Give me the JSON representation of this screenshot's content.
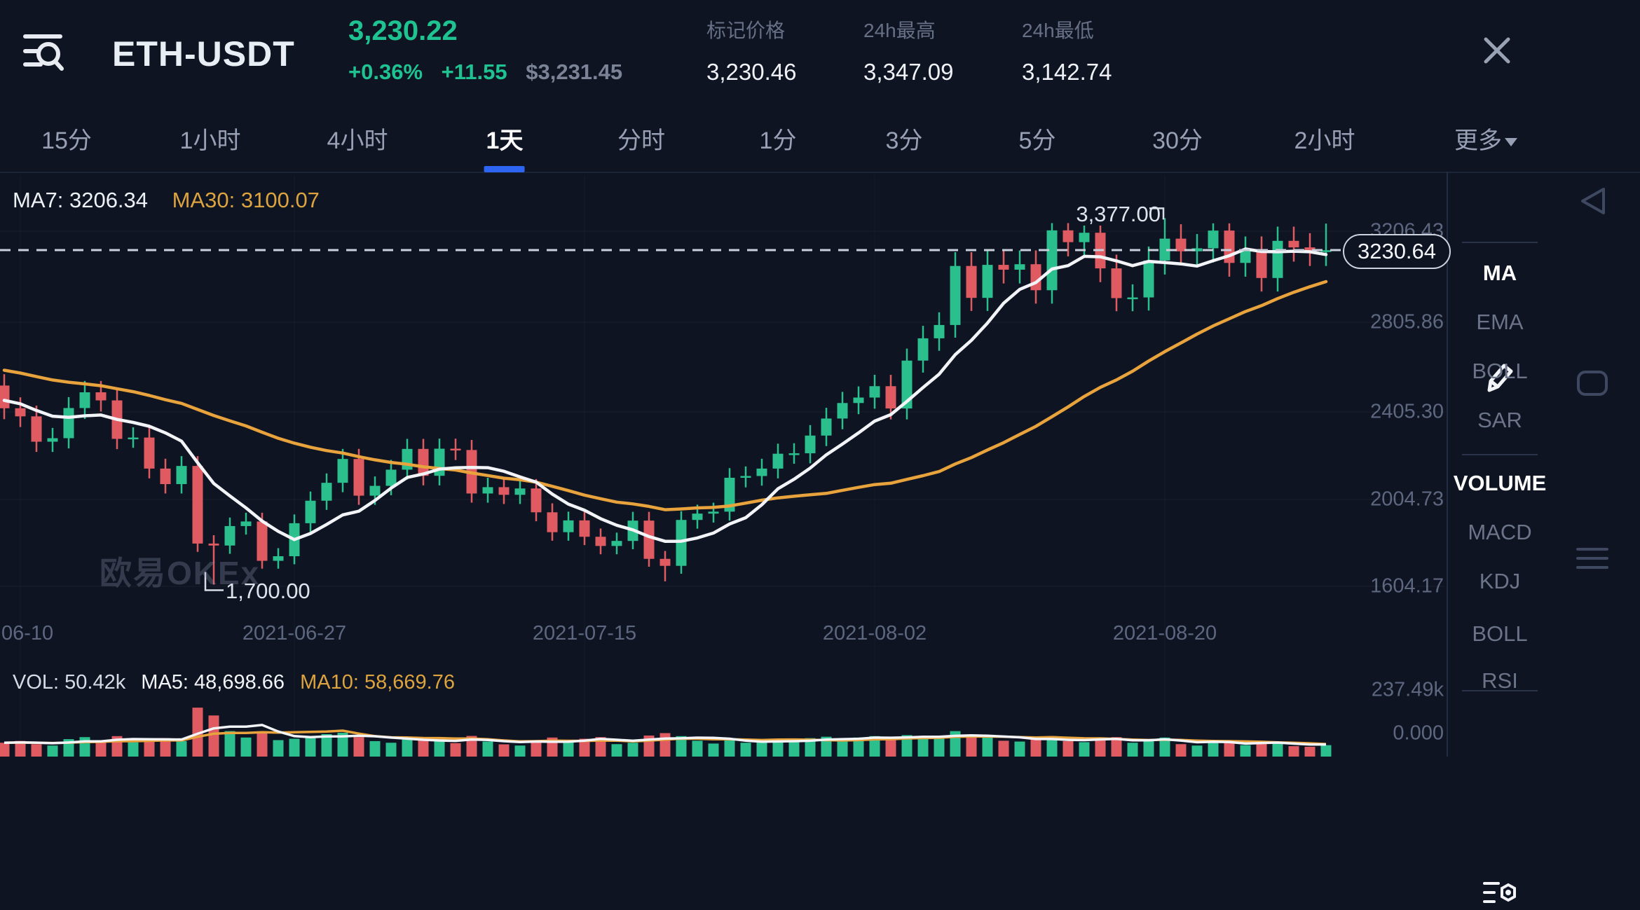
{
  "header": {
    "symbol": "ETH-USDT",
    "last_price": "3,230.22",
    "change_pct": "+0.36%",
    "change_abs": "+11.55",
    "fiat_price": "$3,231.45",
    "stats": [
      {
        "label": "标记价格",
        "value": "3,230.46"
      },
      {
        "label": "24h最高",
        "value": "3,347.09"
      },
      {
        "label": "24h最低",
        "value": "3,142.74"
      }
    ]
  },
  "tabs": {
    "items": [
      "15分",
      "1小时",
      "4小时",
      "1天",
      "分时",
      "1分",
      "3分",
      "5分",
      "30分",
      "2小时"
    ],
    "active": "1天",
    "more_label": "更多"
  },
  "legend": {
    "ma7": "MA7: 3206.34",
    "ma30": "MA30: 3100.07",
    "vol": "VOL: 50.42k",
    "vol_ma5": "MA5: 48,698.66",
    "vol_ma10": "MA10: 58,669.76"
  },
  "watermark": "欧易OKEx",
  "sidebar": {
    "overlays": [
      "MA",
      "EMA",
      "BOLL",
      "SAR"
    ],
    "overlay_active": "MA",
    "indicators": [
      "VOLUME",
      "MACD",
      "KDJ",
      "BOLL",
      "RSI"
    ],
    "indicator_active": "VOLUME"
  },
  "colors": {
    "up": "#2abf8c",
    "down": "#e05a62",
    "ma_fast": "#f2f4f8",
    "ma_slow": "#e8a33d",
    "accent_green": "#1fc391",
    "tab_underline": "#2d64f2",
    "background": "#0e1422"
  },
  "chart_data": {
    "type": "candlestick",
    "symbol": "ETH-USDT",
    "interval": "1天",
    "start_date": "2021-06-09",
    "x_ticks": [
      {
        "label": "06-10",
        "index": 1
      },
      {
        "label": "2021-06-27",
        "index": 18
      },
      {
        "label": "2021-07-15",
        "index": 36
      },
      {
        "label": "2021-08-02",
        "index": 54
      },
      {
        "label": "2021-08-20",
        "index": 72
      }
    ],
    "y_ticks": [
      "3206.43",
      "2805.86",
      "2405.30",
      "2004.73",
      "1604.17"
    ],
    "volume_y_ticks": [
      "237.49k",
      "0.000"
    ],
    "last_price_badge": "3230.64",
    "high_label": {
      "text": "3,377.00",
      "index": 72,
      "price": 3377.0
    },
    "low_label": {
      "text": "1,700.00",
      "index": 13,
      "price": 1700.0
    },
    "overlays": [
      {
        "name": "MA7"
      },
      {
        "name": "MA30"
      }
    ],
    "volume_overlays": [
      {
        "name": "MA5"
      },
      {
        "name": "MA10"
      }
    ],
    "candles_ohlc": [
      [
        2611,
        2663,
        2457,
        2507
      ],
      [
        2507,
        2557,
        2421,
        2470
      ],
      [
        2470,
        2519,
        2307,
        2354
      ],
      [
        2354,
        2417,
        2307,
        2370
      ],
      [
        2370,
        2558,
        2323,
        2508
      ],
      [
        2508,
        2632,
        2458,
        2580
      ],
      [
        2580,
        2632,
        2492,
        2543
      ],
      [
        2543,
        2594,
        2320,
        2367
      ],
      [
        2367,
        2420,
        2326,
        2373
      ],
      [
        2373,
        2420,
        2186,
        2231
      ],
      [
        2231,
        2276,
        2117,
        2160
      ],
      [
        2160,
        2288,
        2117,
        2243
      ],
      [
        2243,
        2288,
        1850,
        1888
      ],
      [
        1888,
        1926,
        1700,
        1879
      ],
      [
        1879,
        2007,
        1841,
        1968
      ],
      [
        1968,
        2029,
        1929,
        1989
      ],
      [
        1989,
        2029,
        1773,
        1809
      ],
      [
        1809,
        1867,
        1773,
        1830
      ],
      [
        1830,
        2021,
        1793,
        1981
      ],
      [
        1981,
        2126,
        1941,
        2084
      ],
      [
        2084,
        2209,
        2042,
        2166
      ],
      [
        2166,
        2321,
        2123,
        2275
      ],
      [
        2275,
        2321,
        2065,
        2107
      ],
      [
        2107,
        2195,
        2065,
        2152
      ],
      [
        2152,
        2271,
        2109,
        2226
      ],
      [
        2226,
        2367,
        2181,
        2321
      ],
      [
        2321,
        2367,
        2154,
        2198
      ],
      [
        2198,
        2368,
        2154,
        2322
      ],
      [
        2322,
        2368,
        2270,
        2316
      ],
      [
        2316,
        2362,
        2075,
        2117
      ],
      [
        2117,
        2189,
        2075,
        2146
      ],
      [
        2146,
        2189,
        2069,
        2111
      ],
      [
        2111,
        2183,
        2069,
        2140
      ],
      [
        2140,
        2183,
        1990,
        2031
      ],
      [
        2031,
        2072,
        1901,
        1940
      ],
      [
        1940,
        2034,
        1901,
        1994
      ],
      [
        1994,
        2034,
        1881,
        1919
      ],
      [
        1919,
        1957,
        1839,
        1877
      ],
      [
        1877,
        1938,
        1839,
        1900
      ],
      [
        1900,
        2033,
        1862,
        1993
      ],
      [
        1993,
        2033,
        1782,
        1818
      ],
      [
        1818,
        1854,
        1715,
        1786
      ],
      [
        1786,
        2036,
        1750,
        1996
      ],
      [
        1996,
        2066,
        1956,
        2025
      ],
      [
        2025,
        2075,
        1984,
        2034
      ],
      [
        2034,
        2233,
        1993,
        2189
      ],
      [
        2189,
        2241,
        2145,
        2197
      ],
      [
        2197,
        2276,
        2153,
        2231
      ],
      [
        2231,
        2345,
        2186,
        2299
      ],
      [
        2299,
        2347,
        2253,
        2301
      ],
      [
        2301,
        2430,
        2255,
        2382
      ],
      [
        2382,
        2509,
        2334,
        2460
      ],
      [
        2460,
        2582,
        2411,
        2531
      ],
      [
        2531,
        2607,
        2480,
        2556
      ],
      [
        2556,
        2660,
        2505,
        2608
      ],
      [
        2608,
        2660,
        2456,
        2506
      ],
      [
        2506,
        2780,
        2456,
        2725
      ],
      [
        2725,
        2884,
        2670,
        2827
      ],
      [
        2827,
        2946,
        2770,
        2888
      ],
      [
        2888,
        3221,
        2830,
        3158
      ],
      [
        3158,
        3221,
        2952,
        3012
      ],
      [
        3012,
        3226,
        2952,
        3163
      ],
      [
        3163,
        3226,
        3078,
        3141
      ],
      [
        3141,
        3229,
        3078,
        3166
      ],
      [
        3166,
        3229,
        2986,
        3047
      ],
      [
        3047,
        3354,
        2986,
        3321
      ],
      [
        3321,
        3354,
        3202,
        3267
      ],
      [
        3267,
        3343,
        3202,
        3310
      ],
      [
        3310,
        3343,
        3084,
        3147
      ],
      [
        3147,
        3210,
        2951,
        3011
      ],
      [
        3011,
        3074,
        2951,
        3014
      ],
      [
        3014,
        3247,
        2954,
        3183
      ],
      [
        3183,
        3377,
        3119,
        3283
      ],
      [
        3283,
        3349,
        3161,
        3225
      ],
      [
        3225,
        3304,
        3160,
        3239
      ],
      [
        3239,
        3353,
        3174,
        3320
      ],
      [
        3320,
        3353,
        3109,
        3172
      ],
      [
        3172,
        3293,
        3109,
        3228
      ],
      [
        3228,
        3293,
        3041,
        3103
      ],
      [
        3103,
        3338,
        3041,
        3273
      ],
      [
        3273,
        3338,
        3178,
        3243
      ],
      [
        3243,
        3308,
        3158,
        3222
      ],
      [
        3222,
        3352,
        3158,
        3230
      ]
    ],
    "volumes_k": [
      62,
      71,
      55,
      48,
      80,
      90,
      72,
      95,
      64,
      78,
      85,
      70,
      237,
      198,
      120,
      88,
      110,
      75,
      82,
      95,
      105,
      112,
      90,
      70,
      62,
      78,
      85,
      72,
      60,
      96,
      68,
      54,
      48,
      75,
      88,
      70,
      82,
      90,
      55,
      62,
      98,
      110,
      95,
      72,
      58,
      75,
      62,
      68,
      80,
      65,
      85,
      92,
      78,
      88,
      95,
      82,
      100,
      92,
      88,
      120,
      95,
      90,
      72,
      68,
      78,
      95,
      70,
      65,
      85,
      90,
      62,
      70,
      88,
      55,
      48,
      72,
      65,
      50,
      68,
      60,
      45,
      42,
      50
    ]
  }
}
